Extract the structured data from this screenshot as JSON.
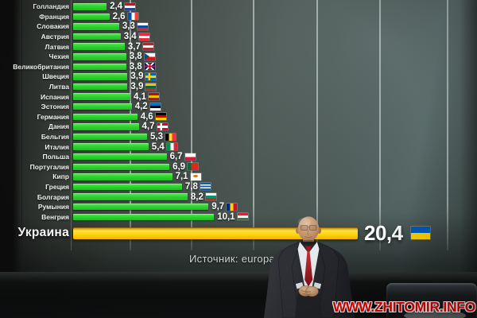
{
  "chart_data": {
    "type": "bar",
    "orientation": "horizontal",
    "title": "",
    "source": "Источник: europa.eu",
    "grid": true,
    "xlim": [
      0,
      21
    ],
    "highlight_category": "Украина",
    "bar_color": "#2fd52f",
    "highlight_bar_color": "#ffd312",
    "categories": [
      "Голландия",
      "Франция",
      "Словакия",
      "Австрия",
      "Латвия",
      "Чехия",
      "Великобритания",
      "Швеция",
      "Литва",
      "Испания",
      "Эстония",
      "Германия",
      "Дания",
      "Бельгия",
      "Италия",
      "Польша",
      "Португалия",
      "Кипр",
      "Греция",
      "Болгария",
      "Румыния",
      "Венгрия",
      "Украина"
    ],
    "values": [
      2.4,
      2.6,
      3.3,
      3.4,
      3.7,
      3.8,
      3.8,
      3.9,
      3.9,
      4.1,
      4.2,
      4.6,
      4.7,
      5.3,
      5.4,
      6.7,
      6.9,
      7.1,
      7.8,
      8.2,
      9.7,
      10.1,
      20.4
    ],
    "value_labels": [
      "2,4",
      "2,6",
      "3,3",
      "3,4",
      "3,7",
      "3,8",
      "3,8",
      "3,9",
      "3,9",
      "4,1",
      "4,2",
      "4,6",
      "4,7",
      "5,3",
      "5,4",
      "6,7",
      "6,9",
      "7,1",
      "7,8",
      "8,2",
      "9,7",
      "10,1",
      "20,4"
    ],
    "flags": [
      {
        "code": "nl",
        "type": "h",
        "colors": [
          "#AE1C28",
          "#FFFFFF",
          "#21468B"
        ]
      },
      {
        "code": "fr",
        "type": "v",
        "colors": [
          "#0055A4",
          "#FFFFFF",
          "#EF4135"
        ]
      },
      {
        "code": "sk",
        "type": "h",
        "colors": [
          "#FFFFFF",
          "#0B4EA2",
          "#EE1C25"
        ]
      },
      {
        "code": "at",
        "type": "h",
        "colors": [
          "#ED2939",
          "#FFFFFF",
          "#ED2939"
        ]
      },
      {
        "code": "lv",
        "type": "h",
        "colors": [
          "#9E3039",
          "#FFFFFF",
          "#9E3039"
        ]
      },
      {
        "code": "cz",
        "type": "tri",
        "top": "#FFFFFF",
        "bottom": "#D7141A",
        "tri": "#11457E"
      },
      {
        "code": "gb",
        "type": "uk"
      },
      {
        "code": "se",
        "type": "cross",
        "bg": "#006AA7",
        "cross": "#FECC00"
      },
      {
        "code": "lt",
        "type": "h",
        "colors": [
          "#FDB913",
          "#006A44",
          "#C1272D"
        ]
      },
      {
        "code": "es",
        "type": "h",
        "colors": [
          "#AA151B",
          "#F1BF00",
          "#AA151B"
        ]
      },
      {
        "code": "ee",
        "type": "h",
        "colors": [
          "#0072CE",
          "#000000",
          "#FFFFFF"
        ]
      },
      {
        "code": "de",
        "type": "h",
        "colors": [
          "#000000",
          "#DD0000",
          "#FFCE00"
        ]
      },
      {
        "code": "dk",
        "type": "cross",
        "bg": "#C8102E",
        "cross": "#FFFFFF"
      },
      {
        "code": "be",
        "type": "v",
        "colors": [
          "#000000",
          "#FDDA24",
          "#EF3340"
        ]
      },
      {
        "code": "it",
        "type": "v",
        "colors": [
          "#009246",
          "#FFFFFF",
          "#CE2B37"
        ]
      },
      {
        "code": "pl",
        "type": "h",
        "colors": [
          "#FFFFFF",
          "#DC143C"
        ]
      },
      {
        "code": "pt",
        "type": "v",
        "colors": [
          "#046A38",
          "#DA291C",
          "#DA291C"
        ]
      },
      {
        "code": "cy",
        "type": "plain",
        "bg": "#FFFFFF",
        "dot": "#D57800"
      },
      {
        "code": "gr",
        "type": "h",
        "colors": [
          "#0D5EAF",
          "#FFFFFF",
          "#0D5EAF",
          "#FFFFFF",
          "#0D5EAF"
        ]
      },
      {
        "code": "bg",
        "type": "h",
        "colors": [
          "#FFFFFF",
          "#00966E",
          "#D62612"
        ]
      },
      {
        "code": "ro",
        "type": "v",
        "colors": [
          "#002B7F",
          "#FCD116",
          "#CE1126"
        ]
      },
      {
        "code": "hu",
        "type": "h",
        "colors": [
          "#CE2939",
          "#FFFFFF",
          "#477050"
        ]
      },
      {
        "code": "ua",
        "type": "h",
        "colors": [
          "#005BBB",
          "#FFD500"
        ]
      }
    ]
  },
  "watermark": {
    "text": "WWW.ZHITOMIR.INFO",
    "color": "#dd0202"
  }
}
